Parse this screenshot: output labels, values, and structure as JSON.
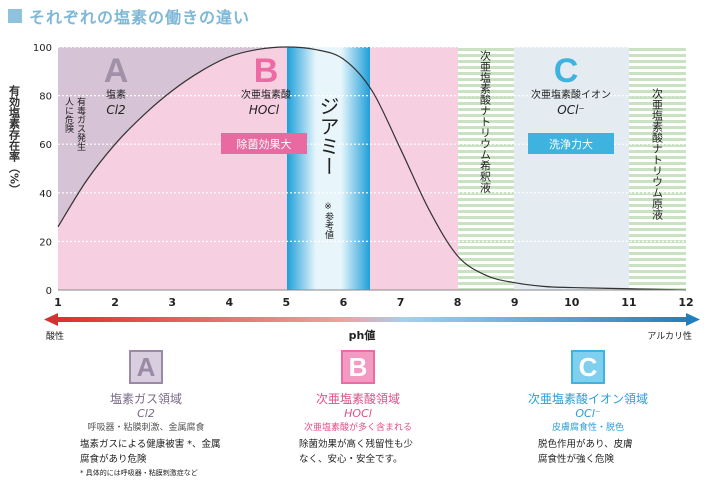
{
  "page_title": "それぞれの塩素の働きの違い",
  "chart_data": {
    "type": "area",
    "xlabel": "ph値",
    "ylabel": "有効塩素存在率（%）",
    "x_ticks": [
      "1",
      "2",
      "3",
      "4",
      "5",
      "6",
      "7",
      "8",
      "9",
      "10",
      "11",
      "12"
    ],
    "y_ticks": [
      "0",
      "20",
      "40",
      "60",
      "80",
      "100"
    ],
    "xlim": [
      1,
      12
    ],
    "ylim": [
      0,
      100
    ],
    "x_left_label": "酸性",
    "x_right_label": "アルカリ性",
    "regions": [
      {
        "letter": "A",
        "name": "塩素",
        "formula": "Cl2",
        "x_range": [
          1,
          5
        ],
        "color": "#d6c3d5"
      },
      {
        "letter": "B",
        "name": "次亜塩素酸",
        "formula": "HOCl",
        "x_range": [
          1,
          8
        ],
        "color": "#f6cfe0"
      },
      {
        "letter": "C",
        "name": "次亜塩素酸イオン",
        "formula": "OCl⁻",
        "x_range": [
          5,
          12
        ],
        "color": "#e4ebf1"
      }
    ],
    "annotations": {
      "a_danger": "有毒ガス発生",
      "a_danger2": "人に危険",
      "b_tag": "除菌効果大",
      "c_tag": "洗浄力大",
      "zone_jiami": "ジアミー",
      "zone_jiami_note": "※参考値",
      "zone_dilute": "次亜塩素酸ナトリウム希釈液",
      "zone_stock": "次亜塩素酸ナトリウム原液"
    },
    "series": [
      {
        "name": "",
        "x": [
          1.0,
          1.5,
          2.0,
          2.5,
          3.0,
          3.5,
          4.0,
          4.5,
          5.0,
          5.5,
          6.0,
          6.5,
          7.0,
          7.5,
          8.0,
          8.5,
          9.0,
          9.5,
          10.0,
          11.0,
          12.0
        ],
        "y": [
          26,
          45,
          60,
          72,
          82,
          90,
          96,
          99,
          100,
          99,
          95,
          82,
          58,
          33,
          14,
          6,
          3,
          1.5,
          1,
          0.5,
          0
        ]
      }
    ]
  },
  "legend": {
    "a": {
      "letter": "A",
      "name": "塩素ガス領域",
      "formula": "Cl2",
      "desc": "呼吸器・粘膜刺激、金属腐食",
      "body1": "塩素ガスによる健康被害 *、金属",
      "body2": "腐食があり危険",
      "footnote": "* 具体的には呼吸器・粘膜刺激症など"
    },
    "b": {
      "letter": "B",
      "name": "次亜塩素酸領域",
      "formula": "HOCl",
      "desc": "次亜塩素酸が多く含まれる",
      "body1": "除菌効果が高く残留性も少",
      "body2": "なく、安心・安全です。"
    },
    "c": {
      "letter": "C",
      "name": "次亜塩素酸イオン領域",
      "formula": "OCl⁻",
      "desc": "皮膚腐食性・脱色",
      "body1": "脱色作用があり、皮膚",
      "body2": "腐食性が強く危険"
    }
  }
}
